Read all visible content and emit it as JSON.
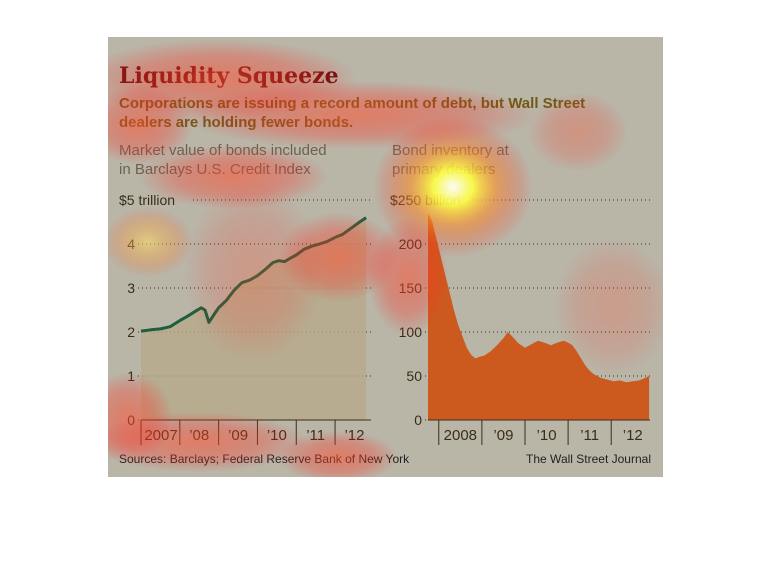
{
  "title": "Liquidity Squeeze",
  "subtitle": "Corporations are issuing a record amount of debt, but Wall Street dealers are holding fewer bonds.",
  "source": "Sources: Barclays; Federal Reserve Bank of New York",
  "credit": "The Wall Street Journal",
  "colors": {
    "green_line": "#1f5e3c",
    "orange_fill": "#cc5a1e",
    "left_area": "#b7a888",
    "background": "#b9b6a8"
  },
  "chart_data": [
    {
      "type": "area",
      "label_line1": "Market value of bonds included",
      "label_line2": "in Barclays U.S. Credit Index",
      "y_top_label": "$5 trillion",
      "ylim": [
        0,
        5
      ],
      "xlim": [
        2007.0,
        2012.9
      ],
      "y_ticks": [
        "0",
        "1",
        "2",
        "3",
        "4"
      ],
      "x_ticks": [
        "2007",
        "’08",
        "’09",
        "’10",
        "’11",
        "’12"
      ],
      "grid": true,
      "x": [
        2007.0,
        2007.25,
        2007.5,
        2007.75,
        2008.0,
        2008.2,
        2008.4,
        2008.55,
        2008.65,
        2008.75,
        2008.9,
        2009.0,
        2009.2,
        2009.4,
        2009.6,
        2009.8,
        2010.0,
        2010.2,
        2010.4,
        2010.55,
        2010.7,
        2010.85,
        2011.0,
        2011.2,
        2011.4,
        2011.6,
        2011.8,
        2012.0,
        2012.2,
        2012.4,
        2012.6,
        2012.8
      ],
      "values": [
        2.02,
        2.05,
        2.07,
        2.12,
        2.26,
        2.36,
        2.47,
        2.55,
        2.5,
        2.22,
        2.42,
        2.55,
        2.72,
        2.95,
        3.12,
        3.18,
        3.28,
        3.42,
        3.58,
        3.62,
        3.6,
        3.68,
        3.75,
        3.88,
        3.95,
        4.0,
        4.06,
        4.15,
        4.22,
        4.35,
        4.48,
        4.6
      ]
    },
    {
      "type": "area",
      "label_line1": "Bond inventory at",
      "label_line2": "primary dealers",
      "y_top_label": "$250 billion",
      "ylim": [
        0,
        250
      ],
      "xlim": [
        2007.75,
        2012.9
      ],
      "y_ticks": [
        "0",
        "50",
        "100",
        "150",
        "200"
      ],
      "x_ticks": [
        "2008",
        "’09",
        "’10",
        "’11",
        "’12"
      ],
      "grid": true,
      "x": [
        2007.75,
        2007.85,
        2007.95,
        2008.05,
        2008.15,
        2008.25,
        2008.35,
        2008.45,
        2008.55,
        2008.65,
        2008.75,
        2008.85,
        2008.95,
        2009.05,
        2009.2,
        2009.35,
        2009.5,
        2009.6,
        2009.7,
        2009.85,
        2010.0,
        2010.15,
        2010.3,
        2010.45,
        2010.6,
        2010.75,
        2010.9,
        2011.0,
        2011.1,
        2011.2,
        2011.3,
        2011.4,
        2011.5,
        2011.6,
        2011.75,
        2011.9,
        2012.05,
        2012.2,
        2012.35,
        2012.5,
        2012.65,
        2012.8,
        2012.88
      ],
      "values": [
        235,
        225,
        205,
        185,
        165,
        145,
        125,
        108,
        95,
        82,
        74,
        70,
        72,
        73,
        78,
        85,
        93,
        100,
        95,
        87,
        82,
        86,
        90,
        88,
        85,
        88,
        90,
        88,
        85,
        78,
        70,
        62,
        56,
        52,
        48,
        46,
        44,
        45,
        43,
        44,
        45,
        48,
        50
      ]
    }
  ]
}
